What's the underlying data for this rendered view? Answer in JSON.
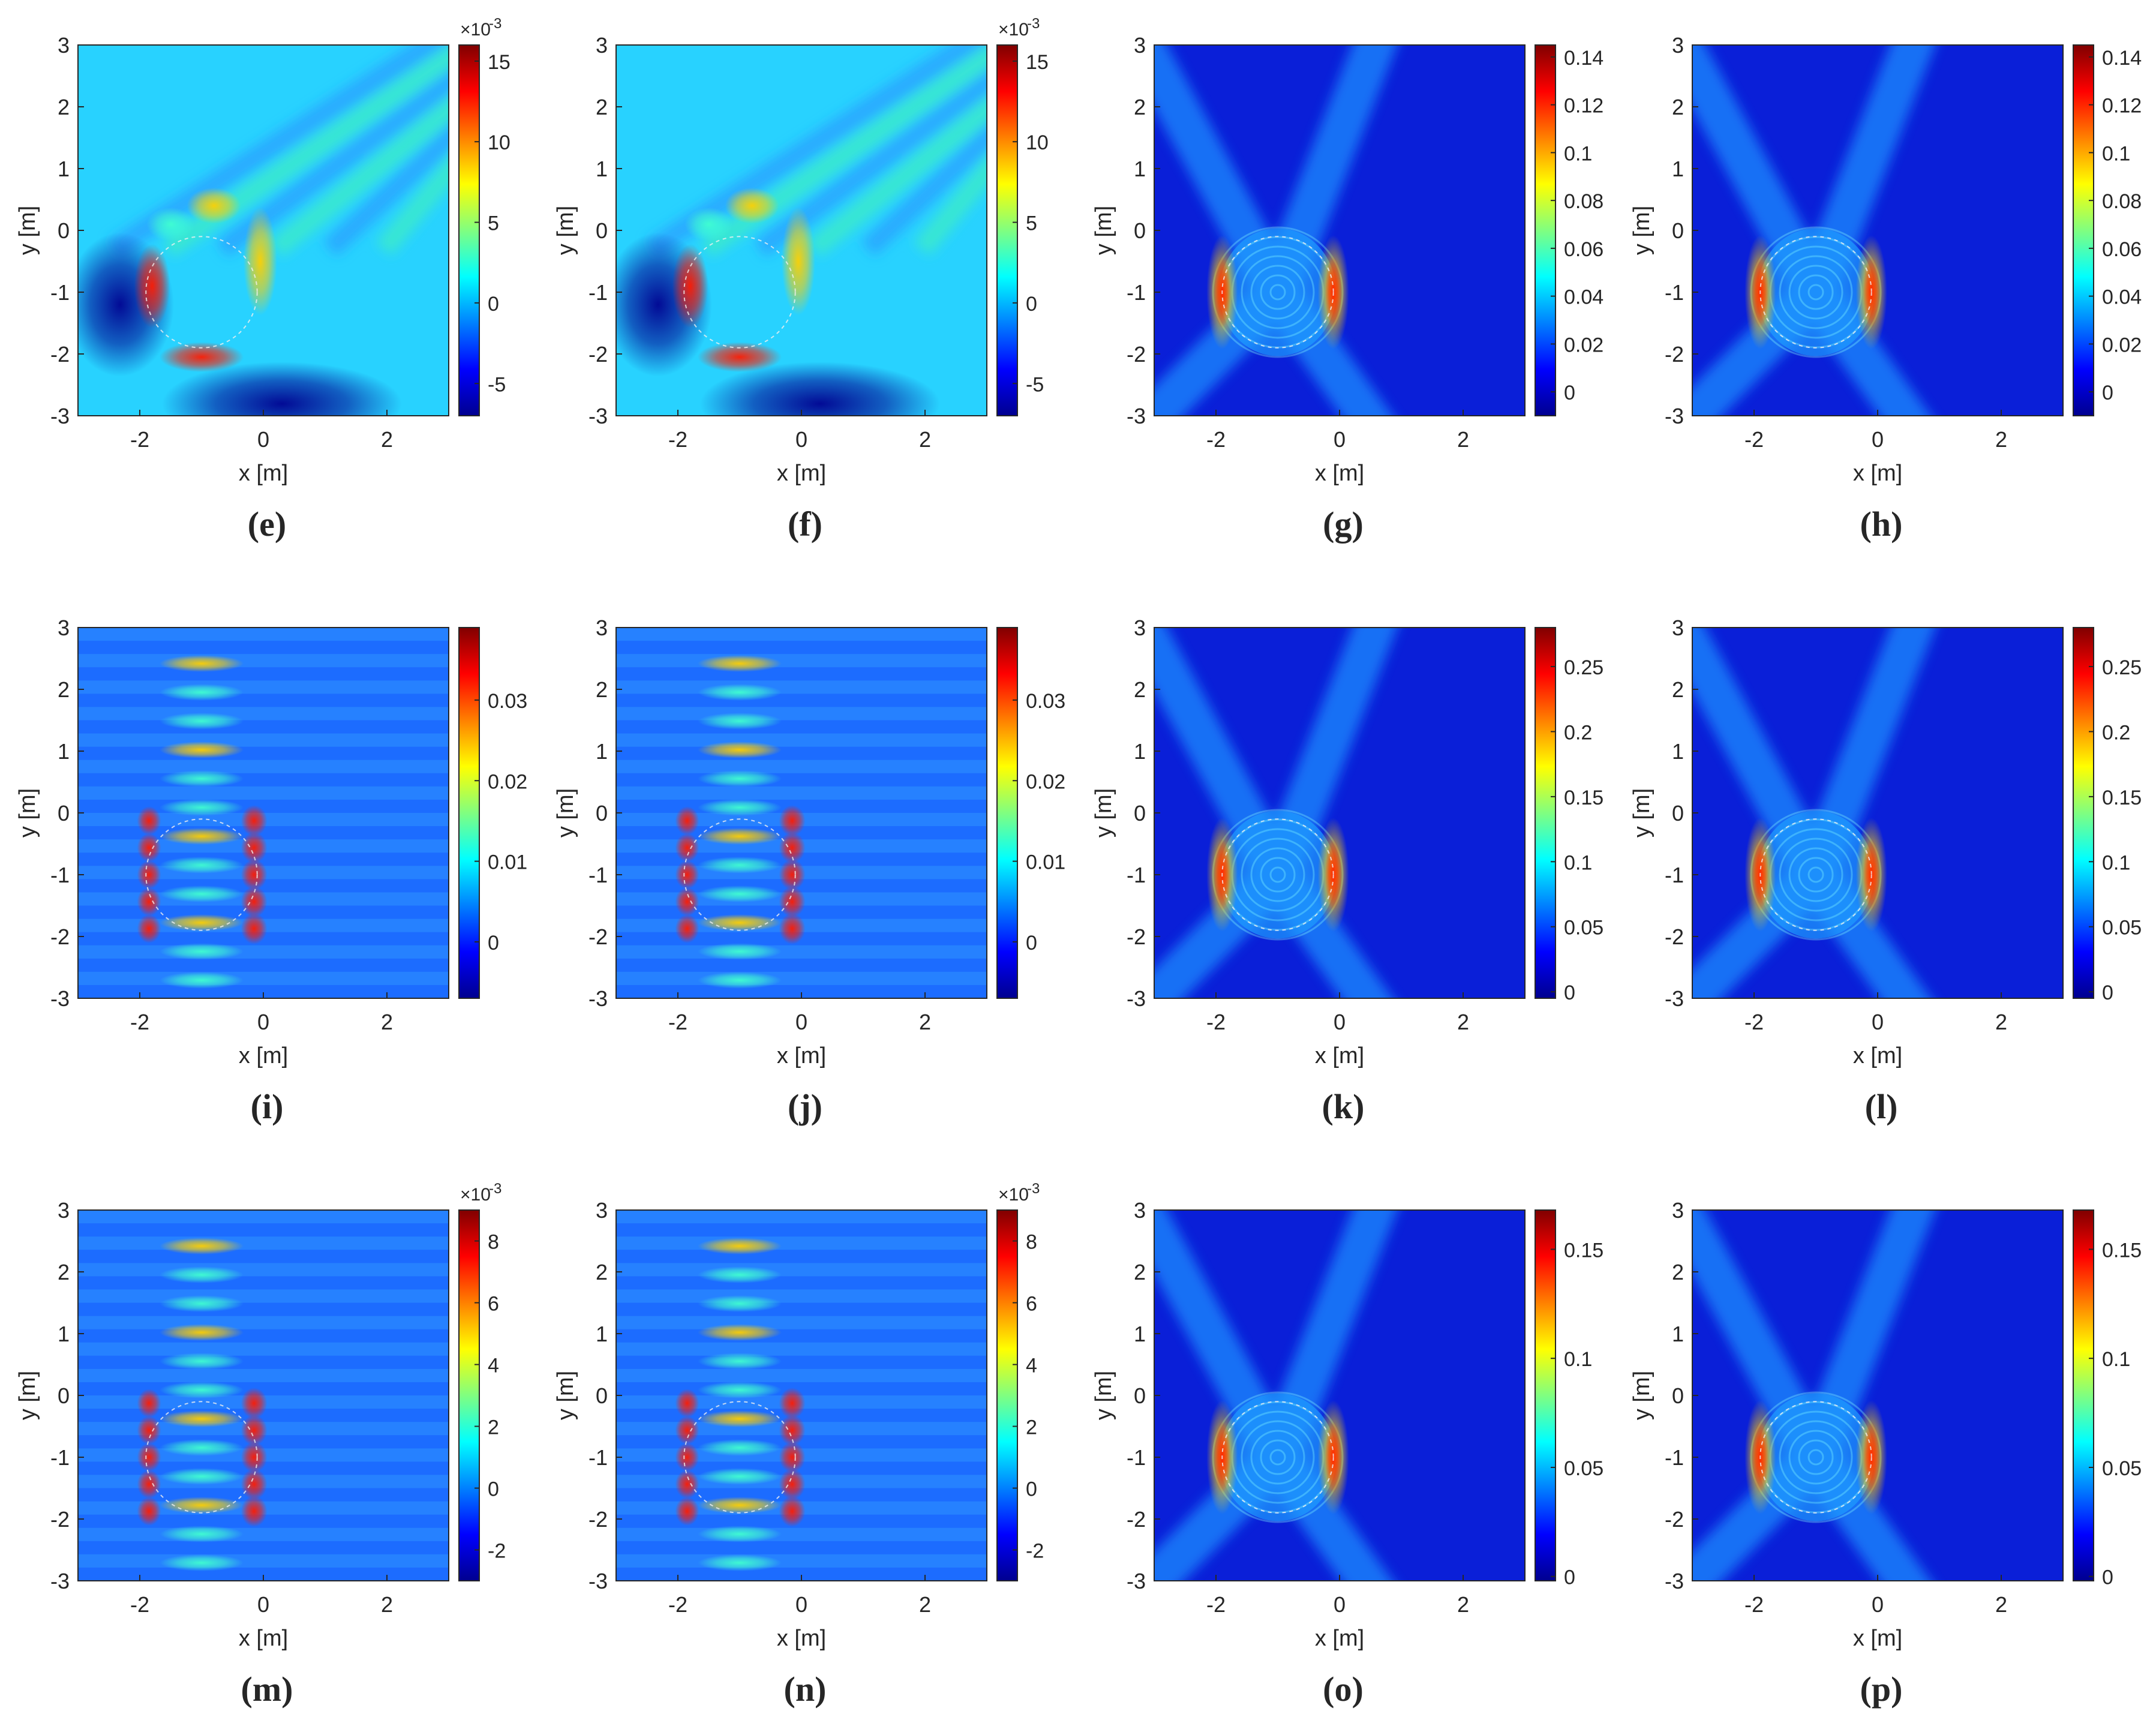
{
  "colors": {
    "colormap": [
      "#00008f",
      "#0000ff",
      "#0080ff",
      "#00ffff",
      "#80ff80",
      "#ffff00",
      "#ff8000",
      "#ff0000",
      "#800000"
    ],
    "axis": "#262626",
    "circle": "#f0f0f0"
  },
  "chart_data": [
    {
      "type": "heatmap",
      "label": "e",
      "caption": {
        "open": "(",
        "letter": "e",
        "close": ")"
      },
      "pattern": "ring",
      "xlabel": "x [m]",
      "ylabel": "y [m]",
      "xlim": [
        -3,
        3
      ],
      "ylim": [
        -3,
        3
      ],
      "x_ticks": [
        "-2",
        "0",
        "2"
      ],
      "y_ticks": [
        "-3",
        "-2",
        "-1",
        "0",
        "1",
        "2",
        "3"
      ],
      "colorbar": {
        "min": -7,
        "max": 16,
        "ticks": [
          15,
          10,
          5,
          0,
          -5
        ],
        "tick_labels": [
          "15",
          "10",
          "5",
          "0",
          "-5"
        ],
        "exponent_label": "×10",
        "exponent": "-3"
      },
      "scatterer_circle": {
        "cx": -1,
        "cy": -1,
        "r": 0.9
      }
    },
    {
      "type": "heatmap",
      "label": "f",
      "caption": {
        "open": "(",
        "letter": "f",
        "close": ")"
      },
      "pattern": "ring",
      "xlabel": "x [m]",
      "ylabel": "y [m]",
      "xlim": [
        -3,
        3
      ],
      "ylim": [
        -3,
        3
      ],
      "x_ticks": [
        "-2",
        "0",
        "2"
      ],
      "y_ticks": [
        "-3",
        "-2",
        "-1",
        "0",
        "1",
        "2",
        "3"
      ],
      "colorbar": {
        "min": -7,
        "max": 16,
        "ticks": [
          15,
          10,
          5,
          0,
          -5
        ],
        "tick_labels": [
          "15",
          "10",
          "5",
          "0",
          "-5"
        ],
        "exponent_label": "×10",
        "exponent": "-3"
      },
      "scatterer_circle": {
        "cx": -1,
        "cy": -1,
        "r": 0.9
      }
    },
    {
      "type": "heatmap",
      "label": "g",
      "caption": {
        "open": "(",
        "letter": "g",
        "close": ")"
      },
      "pattern": "xshape",
      "xlabel": "x [m]",
      "ylabel": "y [m]",
      "xlim": [
        -3,
        3
      ],
      "ylim": [
        -3,
        3
      ],
      "x_ticks": [
        "-2",
        "0",
        "2"
      ],
      "y_ticks": [
        "-3",
        "-2",
        "-1",
        "0",
        "1",
        "2",
        "3"
      ],
      "colorbar": {
        "min": -0.01,
        "max": 0.145,
        "ticks": [
          0.14,
          0.12,
          0.1,
          0.08,
          0.06,
          0.04,
          0.02,
          0
        ],
        "tick_labels": [
          "0.14",
          "0.12",
          "0.1",
          "0.08",
          "0.06",
          "0.04",
          "0.02",
          "0"
        ],
        "exponent_label": "",
        "exponent": ""
      },
      "scatterer_circle": {
        "cx": -1,
        "cy": -1,
        "r": 0.9
      }
    },
    {
      "type": "heatmap",
      "label": "h",
      "caption": {
        "open": "(",
        "letter": "h",
        "close": ")"
      },
      "pattern": "xshape",
      "xlabel": "x [m]",
      "ylabel": "y [m]",
      "xlim": [
        -3,
        3
      ],
      "ylim": [
        -3,
        3
      ],
      "x_ticks": [
        "-2",
        "0",
        "2"
      ],
      "y_ticks": [
        "-3",
        "-2",
        "-1",
        "0",
        "1",
        "2",
        "3"
      ],
      "colorbar": {
        "min": -0.01,
        "max": 0.145,
        "ticks": [
          0.14,
          0.12,
          0.1,
          0.08,
          0.06,
          0.04,
          0.02,
          0
        ],
        "tick_labels": [
          "0.14",
          "0.12",
          "0.1",
          "0.08",
          "0.06",
          "0.04",
          "0.02",
          "0"
        ],
        "exponent_label": "",
        "exponent": ""
      },
      "scatterer_circle": {
        "cx": -1,
        "cy": -1,
        "r": 0.9
      }
    },
    {
      "type": "heatmap",
      "label": "i",
      "caption": {
        "open": "(",
        "letter": "i",
        "close": ")"
      },
      "pattern": "columns",
      "xlabel": "x [m]",
      "ylabel": "y [m]",
      "xlim": [
        -3,
        3
      ],
      "ylim": [
        -3,
        3
      ],
      "x_ticks": [
        "-2",
        "0",
        "2"
      ],
      "y_ticks": [
        "-3",
        "-2",
        "-1",
        "0",
        "1",
        "2",
        "3"
      ],
      "colorbar": {
        "min": -0.007,
        "max": 0.039,
        "ticks": [
          0.03,
          0.02,
          0.01,
          0
        ],
        "tick_labels": [
          "0.03",
          "0.02",
          "0.01",
          "0"
        ],
        "exponent_label": "",
        "exponent": ""
      },
      "scatterer_circle": {
        "cx": -1,
        "cy": -1,
        "r": 0.9
      }
    },
    {
      "type": "heatmap",
      "label": "j",
      "caption": {
        "open": "(",
        "letter": "j",
        "close": ")"
      },
      "pattern": "columns",
      "xlabel": "x [m]",
      "ylabel": "y [m]",
      "xlim": [
        -3,
        3
      ],
      "ylim": [
        -3,
        3
      ],
      "x_ticks": [
        "-2",
        "0",
        "2"
      ],
      "y_ticks": [
        "-3",
        "-2",
        "-1",
        "0",
        "1",
        "2",
        "3"
      ],
      "colorbar": {
        "min": -0.007,
        "max": 0.039,
        "ticks": [
          0.03,
          0.02,
          0.01,
          0
        ],
        "tick_labels": [
          "0.03",
          "0.02",
          "0.01",
          "0"
        ],
        "exponent_label": "",
        "exponent": ""
      },
      "scatterer_circle": {
        "cx": -1,
        "cy": -1,
        "r": 0.9
      }
    },
    {
      "type": "heatmap",
      "label": "k",
      "caption": {
        "open": "(",
        "letter": "k",
        "close": ")"
      },
      "pattern": "xshape",
      "xlabel": "x [m]",
      "ylabel": "y [m]",
      "xlim": [
        -3,
        3
      ],
      "ylim": [
        -3,
        3
      ],
      "x_ticks": [
        "-2",
        "0",
        "2"
      ],
      "y_ticks": [
        "-3",
        "-2",
        "-1",
        "0",
        "1",
        "2",
        "3"
      ],
      "colorbar": {
        "min": -0.005,
        "max": 0.28,
        "ticks": [
          0.25,
          0.2,
          0.15,
          0.1,
          0.05,
          0
        ],
        "tick_labels": [
          "0.25",
          "0.2",
          "0.15",
          "0.1",
          "0.05",
          "0"
        ],
        "exponent_label": "",
        "exponent": ""
      },
      "scatterer_circle": {
        "cx": -1,
        "cy": -1,
        "r": 0.9
      }
    },
    {
      "type": "heatmap",
      "label": "l",
      "caption": {
        "open": "(",
        "letter": "l",
        "close": ")"
      },
      "pattern": "xshape",
      "xlabel": "x [m]",
      "ylabel": "y [m]",
      "xlim": [
        -3,
        3
      ],
      "ylim": [
        -3,
        3
      ],
      "x_ticks": [
        "-2",
        "0",
        "2"
      ],
      "y_ticks": [
        "-3",
        "-2",
        "-1",
        "0",
        "1",
        "2",
        "3"
      ],
      "colorbar": {
        "min": -0.005,
        "max": 0.28,
        "ticks": [
          0.25,
          0.2,
          0.15,
          0.1,
          0.05,
          0
        ],
        "tick_labels": [
          "0.25",
          "0.2",
          "0.15",
          "0.1",
          "0.05",
          "0"
        ],
        "exponent_label": "",
        "exponent": ""
      },
      "scatterer_circle": {
        "cx": -1,
        "cy": -1,
        "r": 0.9
      }
    },
    {
      "type": "heatmap",
      "label": "m",
      "caption": {
        "open": "(",
        "letter": "m",
        "close": ")"
      },
      "pattern": "columns",
      "xlabel": "x [m]",
      "ylabel": "y [m]",
      "xlim": [
        -3,
        3
      ],
      "ylim": [
        -3,
        3
      ],
      "x_ticks": [
        "-2",
        "0",
        "2"
      ],
      "y_ticks": [
        "-3",
        "-2",
        "-1",
        "0",
        "1",
        "2",
        "3"
      ],
      "colorbar": {
        "min": -3,
        "max": 9,
        "ticks": [
          8,
          6,
          4,
          2,
          0,
          -2
        ],
        "tick_labels": [
          "8",
          "6",
          "4",
          "2",
          "0",
          "-2"
        ],
        "exponent_label": "×10",
        "exponent": "-3"
      },
      "scatterer_circle": {
        "cx": -1,
        "cy": -1,
        "r": 0.9
      }
    },
    {
      "type": "heatmap",
      "label": "n",
      "caption": {
        "open": "(",
        "letter": "n",
        "close": ")"
      },
      "pattern": "columns",
      "xlabel": "x [m]",
      "ylabel": "y [m]",
      "xlim": [
        -3,
        3
      ],
      "ylim": [
        -3,
        3
      ],
      "x_ticks": [
        "-2",
        "0",
        "2"
      ],
      "y_ticks": [
        "-3",
        "-2",
        "-1",
        "0",
        "1",
        "2",
        "3"
      ],
      "colorbar": {
        "min": -3,
        "max": 9,
        "ticks": [
          8,
          6,
          4,
          2,
          0,
          -2
        ],
        "tick_labels": [
          "8",
          "6",
          "4",
          "2",
          "0",
          "-2"
        ],
        "exponent_label": "×10",
        "exponent": "-3"
      },
      "scatterer_circle": {
        "cx": -1,
        "cy": -1,
        "r": 0.9
      }
    },
    {
      "type": "heatmap",
      "label": "o",
      "caption": {
        "open": "(",
        "letter": "o",
        "close": ")"
      },
      "pattern": "xshape",
      "xlabel": "x [m]",
      "ylabel": "y [m]",
      "xlim": [
        -3,
        3
      ],
      "ylim": [
        -3,
        3
      ],
      "x_ticks": [
        "-2",
        "0",
        "2"
      ],
      "y_ticks": [
        "-3",
        "-2",
        "-1",
        "0",
        "1",
        "2",
        "3"
      ],
      "colorbar": {
        "min": -0.002,
        "max": 0.168,
        "ticks": [
          0.15,
          0.1,
          0.05,
          0
        ],
        "tick_labels": [
          "0.15",
          "0.1",
          "0.05",
          "0"
        ],
        "exponent_label": "",
        "exponent": ""
      },
      "scatterer_circle": {
        "cx": -1,
        "cy": -1,
        "r": 0.9
      }
    },
    {
      "type": "heatmap",
      "label": "p",
      "caption": {
        "open": "(",
        "letter": "p",
        "close": ")"
      },
      "pattern": "xshape",
      "xlabel": "x [m]",
      "ylabel": "y [m]",
      "xlim": [
        -3,
        3
      ],
      "ylim": [
        -3,
        3
      ],
      "x_ticks": [
        "-2",
        "0",
        "2"
      ],
      "y_ticks": [
        "-3",
        "-2",
        "-1",
        "0",
        "1",
        "2",
        "3"
      ],
      "colorbar": {
        "min": -0.002,
        "max": 0.168,
        "ticks": [
          0.15,
          0.1,
          0.05,
          0
        ],
        "tick_labels": [
          "0.15",
          "0.1",
          "0.05",
          "0"
        ],
        "exponent_label": "",
        "exponent": ""
      },
      "scatterer_circle": {
        "cx": -1,
        "cy": -1,
        "r": 0.9
      }
    }
  ]
}
